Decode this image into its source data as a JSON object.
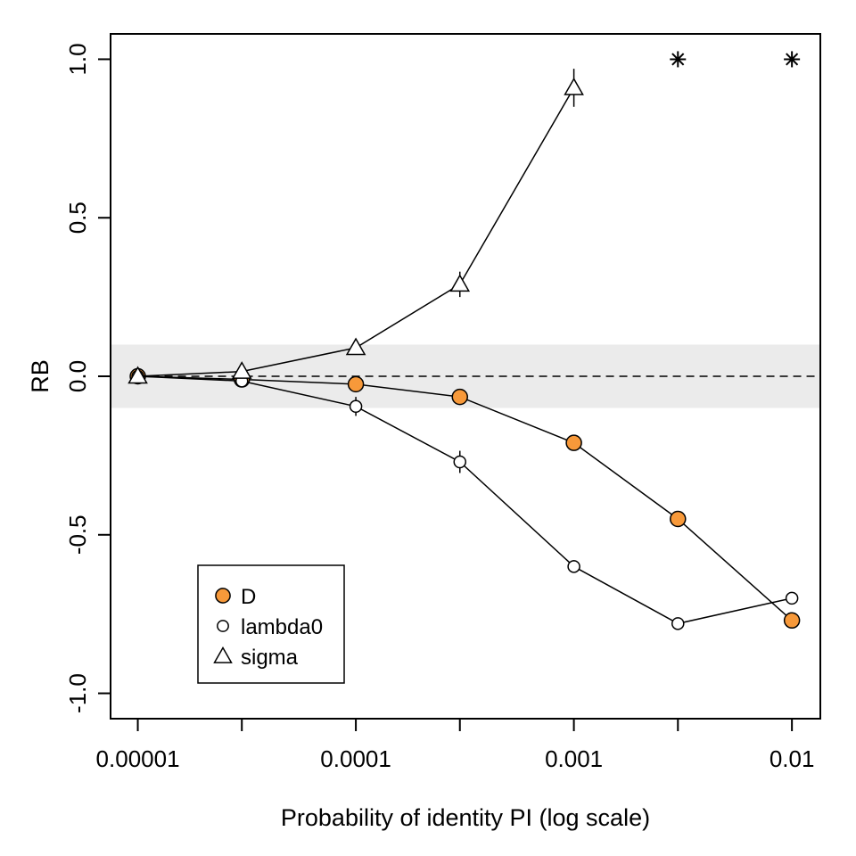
{
  "chart_data": {
    "type": "line",
    "title": "",
    "xlabel": "Probability of identity PI (log scale)",
    "ylabel": "RB",
    "x_scale": "log10",
    "xlim": [
      7.5e-06,
      0.0135
    ],
    "ylim": [
      -1.08,
      1.08
    ],
    "x_ticks": [
      1e-05,
      3e-05,
      0.0001,
      0.0003,
      0.001,
      0.003,
      0.01
    ],
    "x_tick_labels": [
      {
        "value": 1e-05,
        "label": "0.00001"
      },
      {
        "value": 0.0001,
        "label": "0.0001"
      },
      {
        "value": 0.001,
        "label": "0.001"
      },
      {
        "value": 0.01,
        "label": "0.01"
      }
    ],
    "y_ticks": [
      {
        "value": -1.0,
        "label": "-1.0"
      },
      {
        "value": -0.5,
        "label": "-0.5"
      },
      {
        "value": 0.0,
        "label": "0.0"
      },
      {
        "value": 0.5,
        "label": "0.5"
      },
      {
        "value": 1.0,
        "label": "1.0"
      }
    ],
    "reference_band": {
      "ymin": -0.1,
      "ymax": 0.1,
      "color": "#ebebeb"
    },
    "reference_line": {
      "y": 0,
      "style": "dashed"
    },
    "grid": false,
    "legend_position": "bottom-left",
    "series": [
      {
        "name": "D",
        "marker": "filled-circle",
        "fill": "#f7993a",
        "x": [
          1e-05,
          3e-05,
          0.0001,
          0.0003,
          0.001,
          0.003,
          0.01
        ],
        "y": [
          0.0,
          -0.01,
          -0.025,
          -0.065,
          -0.21,
          -0.45,
          -0.77
        ],
        "err": [
          0,
          0,
          0,
          0,
          0,
          0,
          0
        ]
      },
      {
        "name": "lambda0",
        "marker": "open-circle",
        "fill": "#ffffff",
        "x": [
          1e-05,
          3e-05,
          0.0001,
          0.0003,
          0.001,
          0.003,
          0.01
        ],
        "y": [
          0.0,
          -0.015,
          -0.095,
          -0.27,
          -0.6,
          -0.78,
          -0.7
        ],
        "err": [
          0,
          0.012,
          0.03,
          0.035,
          0.02,
          0,
          0
        ]
      },
      {
        "name": "sigma",
        "marker": "open-triangle",
        "fill": "#ffffff",
        "x": [
          1e-05,
          3e-05,
          0.0001,
          0.0003,
          0.001
        ],
        "y": [
          0.0,
          0.015,
          0.09,
          0.29,
          0.91
        ],
        "err": [
          0,
          0.01,
          0.02,
          0.04,
          0.06
        ]
      }
    ],
    "annotations": [
      {
        "marker": "asterisk",
        "x": 0.003,
        "y": 1.0
      },
      {
        "marker": "asterisk",
        "x": 0.01,
        "y": 1.0
      }
    ]
  }
}
